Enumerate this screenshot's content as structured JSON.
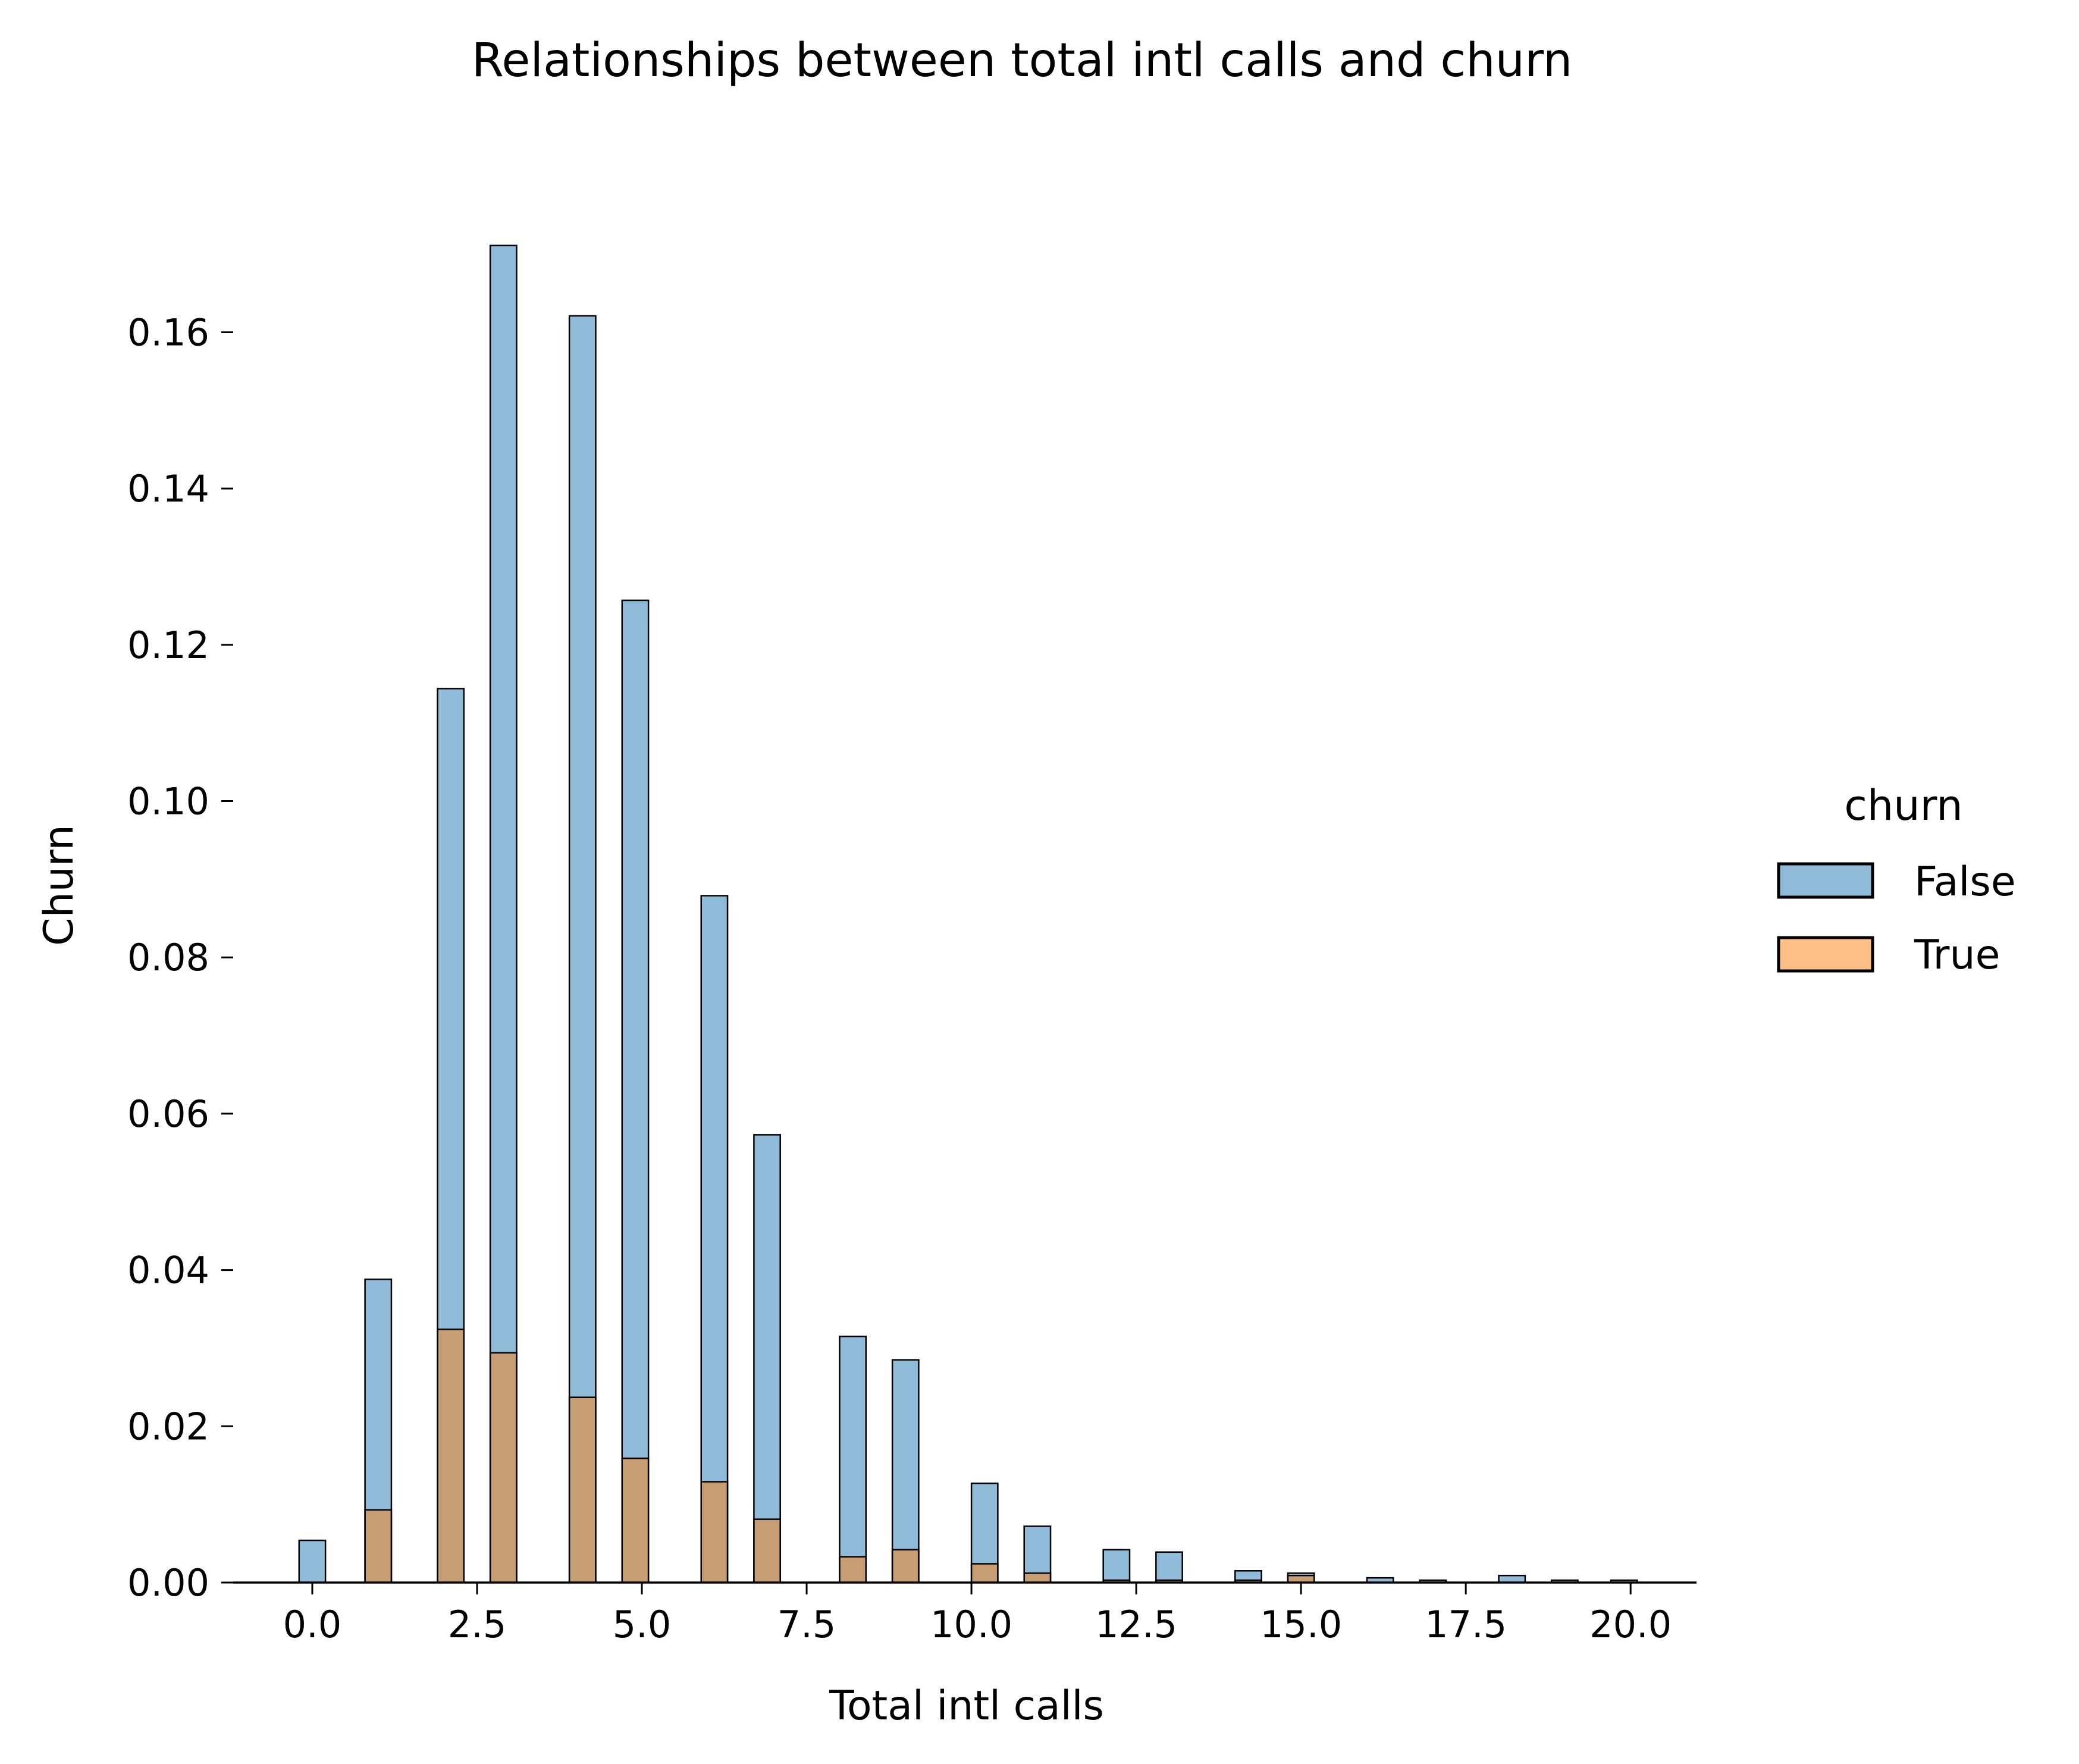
{
  "chart_data": {
    "type": "bar",
    "title": "Relationships between total intl calls and churn",
    "xlabel": "Total intl calls",
    "ylabel": "Churn",
    "xlim": [
      -1.2,
      21
    ],
    "ylim": [
      0,
      0.171
    ],
    "x_ticks": [
      0.0,
      2.5,
      5.0,
      7.5,
      10.0,
      12.5,
      15.0,
      17.5,
      20.0
    ],
    "x_tick_labels": [
      "0.0",
      "2.5",
      "5.0",
      "7.5",
      "10.0",
      "12.5",
      "15.0",
      "17.5",
      "20.0"
    ],
    "y_ticks": [
      0.0,
      0.02,
      0.04,
      0.06,
      0.08,
      0.1,
      0.12,
      0.14,
      0.16
    ],
    "y_tick_labels": [
      "0.00",
      "0.02",
      "0.04",
      "0.06",
      "0.08",
      "0.10",
      "0.12",
      "0.14",
      "0.16"
    ],
    "grid": false,
    "legend": {
      "title": "churn",
      "placement": "right",
      "entries": [
        {
          "label": "False",
          "color": "#1f77b4"
        },
        {
          "label": "True",
          "color": "#ff7f0e"
        }
      ]
    },
    "bin_width": 0.4,
    "series": [
      {
        "name": "False",
        "color": "#1f77b4",
        "x": [
          0,
          1,
          2.1,
          2.9,
          4.1,
          4.9,
          6.1,
          6.9,
          8.2,
          9.0,
          10.2,
          11.0,
          12.2,
          13.0,
          14.2,
          15.0,
          16.2,
          17.0,
          18.2,
          19.0,
          19.9
        ],
        "values": [
          0.0054,
          0.0388,
          0.1144,
          0.1711,
          0.1621,
          0.1257,
          0.0879,
          0.0573,
          0.0315,
          0.0285,
          0.0127,
          0.0072,
          0.0042,
          0.0039,
          0.0015,
          0.0012,
          0.0006,
          0.0003,
          0.0009,
          0.0003,
          0.0003
        ]
      },
      {
        "name": "True",
        "color": "#ff7f0e",
        "x": [
          0,
          1,
          2.1,
          2.9,
          4.1,
          4.9,
          6.1,
          6.9,
          8.2,
          9.0,
          10.2,
          11.0,
          12.2,
          13.0,
          14.2,
          15.0,
          16.2,
          17.0,
          18.2,
          19.0,
          19.9
        ],
        "values": [
          0,
          0.0093,
          0.0324,
          0.0294,
          0.0237,
          0.0159,
          0.0129,
          0.0081,
          0.0033,
          0.0042,
          0.0024,
          0.0012,
          0.0003,
          0.0003,
          0.0003,
          0.0009,
          0,
          0,
          0,
          0,
          0
        ]
      }
    ]
  }
}
